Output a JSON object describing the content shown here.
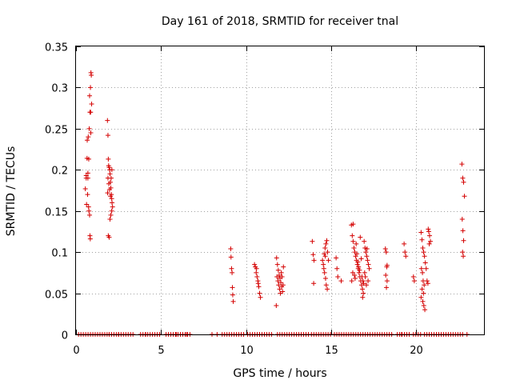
{
  "chart_data": {
    "type": "scatter",
    "title": "Day 161 of 2018, SRMTID for receiver tnal",
    "xlabel": "GPS time / hours",
    "ylabel": "SRMTID / TECUs",
    "xlim": [
      0,
      24
    ],
    "ylim": [
      0,
      0.35
    ],
    "xticks": [
      0,
      5,
      10,
      15,
      20
    ],
    "xtick_labels": [
      "0",
      "5",
      "10",
      "15",
      "20"
    ],
    "yticks": [
      0,
      0.05,
      0.1,
      0.15,
      0.2,
      0.25,
      0.3,
      0.35
    ],
    "ytick_labels": [
      "0",
      "0.05",
      "0.1",
      "0.15",
      "0.2",
      "0.25",
      "0.3",
      "0.35"
    ],
    "grid": true,
    "marker": "+",
    "marker_color": "#d40000",
    "series": [
      {
        "name": "SRMTID",
        "points": [
          [
            0.55,
            0.177
          ],
          [
            0.6,
            0.19
          ],
          [
            0.65,
            0.214
          ],
          [
            0.7,
            0.196
          ],
          [
            0.62,
            0.158
          ],
          [
            0.68,
            0.17
          ],
          [
            0.72,
            0.24
          ],
          [
            0.75,
            0.213
          ],
          [
            0.78,
            0.25
          ],
          [
            0.8,
            0.29
          ],
          [
            0.82,
            0.27
          ],
          [
            0.85,
            0.3
          ],
          [
            0.88,
            0.318
          ],
          [
            0.9,
            0.315
          ],
          [
            0.92,
            0.28
          ],
          [
            0.76,
            0.15
          ],
          [
            0.8,
            0.145
          ],
          [
            0.82,
            0.12
          ],
          [
            0.84,
            0.116
          ],
          [
            0.86,
            0.27
          ],
          [
            0.87,
            0.245
          ],
          [
            0.6,
            0.193
          ],
          [
            0.66,
            0.236
          ],
          [
            0.7,
            0.19
          ],
          [
            0.74,
            0.155
          ],
          [
            1.85,
            0.26
          ],
          [
            1.88,
            0.242
          ],
          [
            1.9,
            0.213
          ],
          [
            1.92,
            0.205
          ],
          [
            1.95,
            0.203
          ],
          [
            1.98,
            0.2
          ],
          [
            2.0,
            0.195
          ],
          [
            2.02,
            0.185
          ],
          [
            2.05,
            0.178
          ],
          [
            2.08,
            0.17
          ],
          [
            2.1,
            0.165
          ],
          [
            2.12,
            0.16
          ],
          [
            2.15,
            0.155
          ],
          [
            1.9,
            0.12
          ],
          [
            1.95,
            0.118
          ],
          [
            2.0,
            0.14
          ],
          [
            2.05,
            0.145
          ],
          [
            2.1,
            0.15
          ],
          [
            1.88,
            0.19
          ],
          [
            1.93,
            0.183
          ],
          [
            1.97,
            0.176
          ],
          [
            2.03,
            0.168
          ],
          [
            2.07,
            0.19
          ],
          [
            2.11,
            0.2
          ],
          [
            1.86,
            0.172
          ],
          [
            9.1,
            0.104
          ],
          [
            9.12,
            0.094
          ],
          [
            9.15,
            0.08
          ],
          [
            9.18,
            0.075
          ],
          [
            9.2,
            0.057
          ],
          [
            9.22,
            0.048
          ],
          [
            9.25,
            0.04
          ],
          [
            10.5,
            0.085
          ],
          [
            10.55,
            0.082
          ],
          [
            10.6,
            0.075
          ],
          [
            10.65,
            0.07
          ],
          [
            10.7,
            0.065
          ],
          [
            10.75,
            0.058
          ],
          [
            10.8,
            0.05
          ],
          [
            10.85,
            0.045
          ],
          [
            10.62,
            0.08
          ],
          [
            10.72,
            0.062
          ],
          [
            11.8,
            0.093
          ],
          [
            11.85,
            0.085
          ],
          [
            11.9,
            0.078
          ],
          [
            11.95,
            0.072
          ],
          [
            12.0,
            0.068
          ],
          [
            12.05,
            0.063
          ],
          [
            12.1,
            0.058
          ],
          [
            12.15,
            0.052
          ],
          [
            12.2,
            0.082
          ],
          [
            11.82,
            0.07
          ],
          [
            11.88,
            0.065
          ],
          [
            11.92,
            0.06
          ],
          [
            11.98,
            0.055
          ],
          [
            12.02,
            0.05
          ],
          [
            12.08,
            0.075
          ],
          [
            12.12,
            0.07
          ],
          [
            11.78,
            0.035
          ],
          [
            12.18,
            0.06
          ],
          [
            13.9,
            0.113
          ],
          [
            13.95,
            0.097
          ],
          [
            14.0,
            0.09
          ],
          [
            13.98,
            0.062
          ],
          [
            14.5,
            0.09
          ],
          [
            14.55,
            0.085
          ],
          [
            14.6,
            0.098
          ],
          [
            14.65,
            0.105
          ],
          [
            14.7,
            0.11
          ],
          [
            14.75,
            0.114
          ],
          [
            14.8,
            0.1
          ],
          [
            14.62,
            0.075
          ],
          [
            14.68,
            0.068
          ],
          [
            14.72,
            0.06
          ],
          [
            14.58,
            0.08
          ],
          [
            14.78,
            0.055
          ],
          [
            14.85,
            0.09
          ],
          [
            14.66,
            0.095
          ],
          [
            15.3,
            0.093
          ],
          [
            15.35,
            0.08
          ],
          [
            15.4,
            0.07
          ],
          [
            15.6,
            0.065
          ],
          [
            16.2,
            0.133
          ],
          [
            16.25,
            0.12
          ],
          [
            16.3,
            0.113
          ],
          [
            16.35,
            0.105
          ],
          [
            16.4,
            0.1
          ],
          [
            16.45,
            0.095
          ],
          [
            16.5,
            0.09
          ],
          [
            16.55,
            0.085
          ],
          [
            16.6,
            0.08
          ],
          [
            16.65,
            0.075
          ],
          [
            16.7,
            0.07
          ],
          [
            16.75,
            0.065
          ],
          [
            16.8,
            0.06
          ],
          [
            16.85,
            0.055
          ],
          [
            16.9,
            0.05
          ],
          [
            16.95,
            0.113
          ],
          [
            17.0,
            0.105
          ],
          [
            17.05,
            0.1
          ],
          [
            17.1,
            0.095
          ],
          [
            17.15,
            0.09
          ],
          [
            17.2,
            0.085
          ],
          [
            17.25,
            0.08
          ],
          [
            16.3,
            0.134
          ],
          [
            16.38,
            0.072
          ],
          [
            16.42,
            0.068
          ],
          [
            16.48,
            0.11
          ],
          [
            16.52,
            0.098
          ],
          [
            16.58,
            0.088
          ],
          [
            16.62,
            0.082
          ],
          [
            16.68,
            0.078
          ],
          [
            16.72,
            0.118
          ],
          [
            16.78,
            0.092
          ],
          [
            16.82,
            0.07
          ],
          [
            16.88,
            0.065
          ],
          [
            16.92,
            0.062
          ],
          [
            16.98,
            0.075
          ],
          [
            17.02,
            0.07
          ],
          [
            17.08,
            0.06
          ],
          [
            17.12,
            0.104
          ],
          [
            17.18,
            0.065
          ],
          [
            16.22,
            0.065
          ],
          [
            16.28,
            0.075
          ],
          [
            16.86,
            0.045
          ],
          [
            18.2,
            0.104
          ],
          [
            18.25,
            0.1
          ],
          [
            18.3,
            0.084
          ],
          [
            18.28,
            0.082
          ],
          [
            18.22,
            0.072
          ],
          [
            18.3,
            0.065
          ],
          [
            18.26,
            0.057
          ],
          [
            19.3,
            0.11
          ],
          [
            19.35,
            0.1
          ],
          [
            19.4,
            0.095
          ],
          [
            19.85,
            0.07
          ],
          [
            19.9,
            0.065
          ],
          [
            20.3,
            0.124
          ],
          [
            20.35,
            0.115
          ],
          [
            20.4,
            0.105
          ],
          [
            20.45,
            0.1
          ],
          [
            20.5,
            0.095
          ],
          [
            20.32,
            0.08
          ],
          [
            20.38,
            0.075
          ],
          [
            20.42,
            0.065
          ],
          [
            20.48,
            0.06
          ],
          [
            20.36,
            0.055
          ],
          [
            20.44,
            0.05
          ],
          [
            20.3,
            0.045
          ],
          [
            20.4,
            0.04
          ],
          [
            20.46,
            0.035
          ],
          [
            20.52,
            0.03
          ],
          [
            20.55,
            0.087
          ],
          [
            20.6,
            0.08
          ],
          [
            20.65,
            0.065
          ],
          [
            20.7,
            0.062
          ],
          [
            20.75,
            0.125
          ],
          [
            20.8,
            0.12
          ],
          [
            20.85,
            0.113
          ],
          [
            20.72,
            0.128
          ],
          [
            20.78,
            0.11
          ],
          [
            22.7,
            0.207
          ],
          [
            22.75,
            0.19
          ],
          [
            22.8,
            0.185
          ],
          [
            22.85,
            0.168
          ],
          [
            22.72,
            0.14
          ],
          [
            22.76,
            0.126
          ],
          [
            22.8,
            0.114
          ],
          [
            22.74,
            0.1
          ],
          [
            22.78,
            0.095
          ]
        ],
        "zero_intervals": [
          [
            0.15,
            1.9
          ],
          [
            1.95,
            3.4
          ],
          [
            3.8,
            5.0
          ],
          [
            5.3,
            6.8
          ],
          [
            8.6,
            9.9
          ],
          [
            10.1,
            11.6
          ],
          [
            11.85,
            13.7
          ],
          [
            13.85,
            15.1
          ],
          [
            15.2,
            17.4
          ],
          [
            17.45,
            18.7
          ],
          [
            18.9,
            19.7
          ],
          [
            19.85,
            20.3
          ],
          [
            20.5,
            22.8
          ]
        ],
        "zero_spacing": 0.14,
        "zero_extra_x": [
          2.5,
          4.1,
          5.9,
          6.5,
          8.0,
          8.3,
          19.15,
          23.0
        ]
      }
    ]
  }
}
